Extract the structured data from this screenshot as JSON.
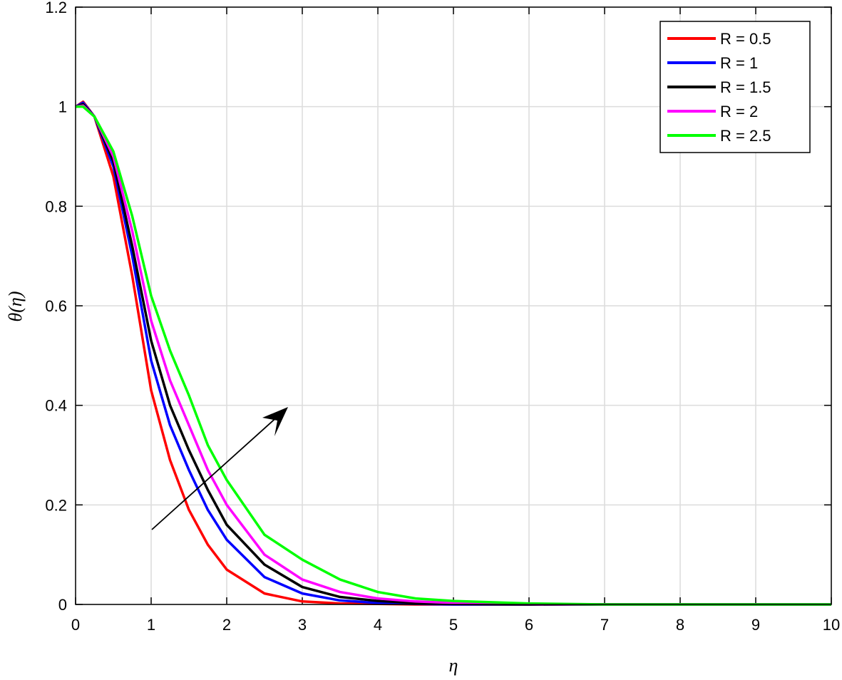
{
  "chart_data": {
    "type": "line",
    "xlabel": "η",
    "ylabel": "θ(η)",
    "x": [
      0,
      0.1,
      0.25,
      0.5,
      0.75,
      1,
      1.25,
      1.5,
      1.75,
      2,
      2.5,
      3,
      3.5,
      4,
      4.5,
      5,
      6,
      7,
      8,
      9,
      10
    ],
    "series": [
      {
        "name": "R = 0.5",
        "color": "#ff0000",
        "values": [
          1,
          1.01,
          0.98,
          0.86,
          0.66,
          0.43,
          0.29,
          0.19,
          0.12,
          0.07,
          0.022,
          0.006,
          0.002,
          0.001,
          0,
          0,
          0,
          0,
          0,
          0,
          0
        ]
      },
      {
        "name": "R = 1",
        "color": "#0000ff",
        "values": [
          1,
          1.008,
          0.98,
          0.88,
          0.7,
          0.49,
          0.36,
          0.27,
          0.19,
          0.13,
          0.055,
          0.022,
          0.008,
          0.003,
          0.001,
          0,
          0,
          0,
          0,
          0,
          0
        ]
      },
      {
        "name": "R = 1.5",
        "color": "#000000",
        "values": [
          1,
          1.005,
          0.98,
          0.89,
          0.72,
          0.53,
          0.4,
          0.31,
          0.23,
          0.16,
          0.08,
          0.035,
          0.015,
          0.007,
          0.003,
          0.001,
          0,
          0,
          0,
          0,
          0
        ]
      },
      {
        "name": "R = 2",
        "color": "#ff00ff",
        "values": [
          1,
          1.002,
          0.98,
          0.9,
          0.75,
          0.57,
          0.45,
          0.36,
          0.27,
          0.2,
          0.1,
          0.05,
          0.025,
          0.012,
          0.006,
          0.003,
          0.001,
          0,
          0,
          0,
          0
        ]
      },
      {
        "name": "R = 2.5",
        "color": "#00ff00",
        "values": [
          1,
          1.0,
          0.98,
          0.91,
          0.78,
          0.62,
          0.51,
          0.42,
          0.32,
          0.25,
          0.14,
          0.09,
          0.05,
          0.025,
          0.012,
          0.007,
          0.002,
          0,
          0,
          0,
          0
        ]
      }
    ],
    "xlim": [
      0,
      10
    ],
    "xticks": [
      0,
      1,
      2,
      3,
      4,
      5,
      6,
      7,
      8,
      9,
      10
    ],
    "ylim": [
      0,
      1.2
    ],
    "yticks": [
      0,
      0.2,
      0.4,
      0.6,
      0.8,
      1,
      1.2
    ],
    "grid": true,
    "legend": "top-right"
  }
}
